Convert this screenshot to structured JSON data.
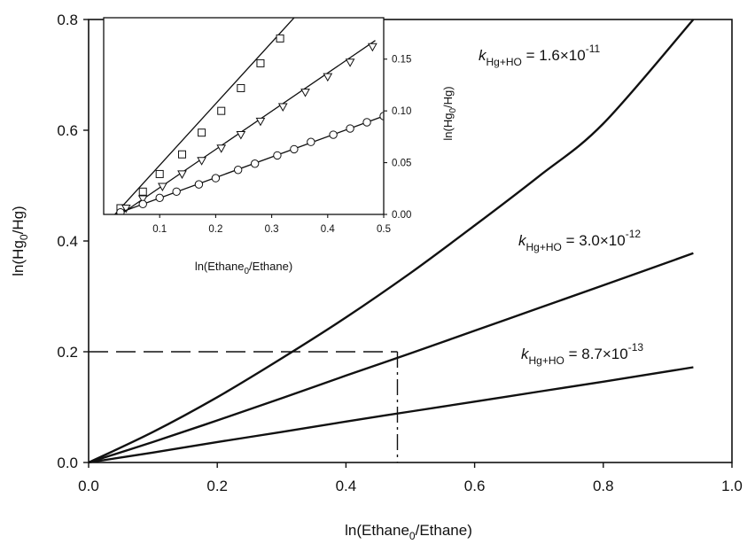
{
  "chart_data": [
    {
      "type": "line",
      "role": "main",
      "xlabel": "ln(Ethane0/Ethane)",
      "ylabel": "ln(Hg0/Hg)",
      "xlim": [
        0.0,
        1.0
      ],
      "ylim": [
        0.0,
        0.8
      ],
      "x_ticks": [
        "0.0",
        "0.2",
        "0.4",
        "0.6",
        "0.8",
        "1.0"
      ],
      "y_ticks": [
        "0.0",
        "0.2",
        "0.4",
        "0.6",
        "0.8"
      ],
      "grid": false,
      "series": [
        {
          "name": "k_Hg+HO = 1.6×10^-11",
          "x": [
            0.0,
            0.1,
            0.2,
            0.3,
            0.4,
            0.5,
            0.6,
            0.7,
            0.8,
            0.94
          ],
          "y": [
            0.0,
            0.055,
            0.118,
            0.188,
            0.262,
            0.342,
            0.428,
            0.517,
            0.612,
            0.8
          ]
        },
        {
          "name": "k_Hg+HO = 3.0×10^-12",
          "x": [
            0.0,
            0.1,
            0.2,
            0.3,
            0.4,
            0.5,
            0.6,
            0.7,
            0.8,
            0.94
          ],
          "y": [
            0.0,
            0.037,
            0.076,
            0.116,
            0.157,
            0.197,
            0.238,
            0.279,
            0.32,
            0.378
          ]
        },
        {
          "name": "k_Hg+HO = 8.7×10^-13",
          "x": [
            0.0,
            0.1,
            0.2,
            0.3,
            0.4,
            0.5,
            0.6,
            0.7,
            0.8,
            0.94
          ],
          "y": [
            0.0,
            0.018,
            0.037,
            0.055,
            0.074,
            0.092,
            0.11,
            0.128,
            0.146,
            0.172
          ]
        }
      ],
      "guide": {
        "x": 0.48,
        "y": 0.2
      },
      "annotations": [
        {
          "k": "k",
          "sub": "Hg+HO",
          "mid": " = 1.6×10",
          "sup": "-11"
        },
        {
          "k": "k",
          "sub": "Hg+HO",
          "mid": " = 3.0×10",
          "sup": "-12"
        },
        {
          "k": "k",
          "sub": "Hg+HO",
          "mid": " = 8.7×10",
          "sup": "-13"
        }
      ]
    },
    {
      "type": "scatter",
      "role": "inset",
      "xlabel": "ln(Ethane0/Ethane)",
      "ylabel": "ln(Hg0/Hg)",
      "xlim": [
        0.0,
        0.5
      ],
      "ylim": [
        0.0,
        0.19
      ],
      "x_ticks": [
        "0.1",
        "0.2",
        "0.3",
        "0.4",
        "0.5"
      ],
      "y_ticks": [
        "0.00",
        "0.05",
        "0.10",
        "0.15"
      ],
      "y_axis_side": "right",
      "series": [
        {
          "marker": "square",
          "x": [
            0.03,
            0.07,
            0.1,
            0.14,
            0.175,
            0.21,
            0.245,
            0.28,
            0.315
          ],
          "y": [
            0.006,
            0.022,
            0.039,
            0.058,
            0.079,
            0.1,
            0.122,
            0.146,
            0.17
          ],
          "fit": {
            "x": [
              0.02,
              0.34
            ],
            "y": [
              0.0,
              0.19
            ]
          }
        },
        {
          "marker": "triangle-down",
          "x": [
            0.04,
            0.07,
            0.105,
            0.14,
            0.175,
            0.21,
            0.245,
            0.28,
            0.32,
            0.36,
            0.4,
            0.44,
            0.48
          ],
          "y": [
            0.006,
            0.015,
            0.027,
            0.039,
            0.052,
            0.064,
            0.077,
            0.09,
            0.104,
            0.118,
            0.133,
            0.147,
            0.162
          ],
          "fit": {
            "x": [
              0.03,
              0.485
            ],
            "y": [
              0.0,
              0.168
            ]
          }
        },
        {
          "marker": "circle",
          "x": [
            0.03,
            0.07,
            0.1,
            0.13,
            0.17,
            0.2,
            0.24,
            0.27,
            0.31,
            0.34,
            0.37,
            0.41,
            0.44,
            0.47,
            0.5
          ],
          "y": [
            0.002,
            0.01,
            0.016,
            0.022,
            0.029,
            0.035,
            0.043,
            0.049,
            0.057,
            0.063,
            0.07,
            0.077,
            0.083,
            0.089,
            0.095
          ],
          "fit": {
            "x": [
              0.02,
              0.5
            ],
            "y": [
              0.0,
              0.095
            ]
          }
        }
      ]
    }
  ],
  "labels": {
    "main_xlabel_base": "ln(Ethane",
    "main_xlabel_sub": "0",
    "main_xlabel_tail": "/Ethane)",
    "main_ylabel_base": "ln(Hg",
    "main_ylabel_sub": "0",
    "main_ylabel_tail": "/Hg)",
    "inset_xlabel_base": "ln(Ethane",
    "inset_xlabel_sub": "0",
    "inset_xlabel_tail": "/Ethane)",
    "inset_ylabel_base": "ln(Hg",
    "inset_ylabel_sub": "0",
    "inset_ylabel_tail": "/Hg)"
  }
}
